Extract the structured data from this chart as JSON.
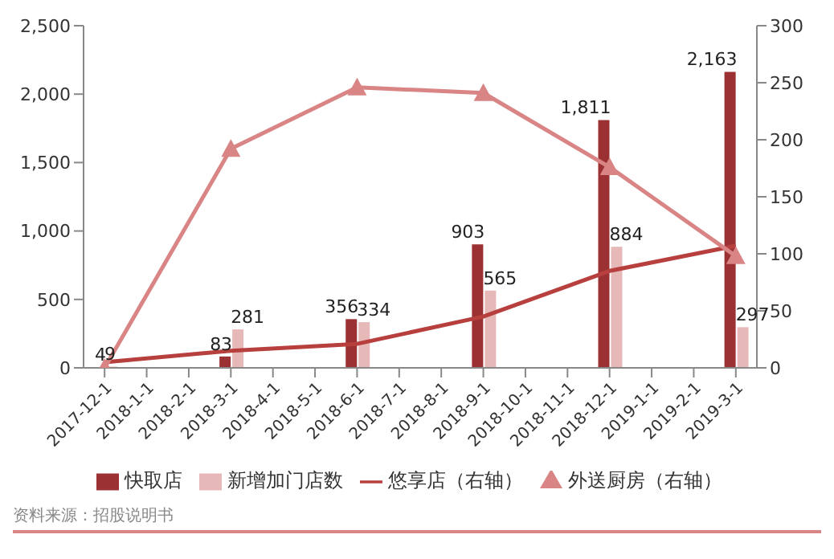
{
  "chart_data": {
    "type": "bar",
    "categories": [
      "2017-12-1",
      "2018-1-1",
      "2018-2-1",
      "2018-3-1",
      "2018-4-1",
      "2018-5-1",
      "2018-6-1",
      "2018-7-1",
      "2018-8-1",
      "2018-9-1",
      "2018-10-1",
      "2018-11-1",
      "2018-12-1",
      "2019-1-1",
      "2019-2-1",
      "2019-3-1"
    ],
    "series": [
      {
        "name": "快取店",
        "color": "#9b3133",
        "values": [
          4,
          null,
          null,
          83,
          null,
          null,
          356,
          null,
          null,
          903,
          null,
          null,
          1811,
          null,
          null,
          2163
        ],
        "value_labels": [
          "4",
          null,
          null,
          "83",
          null,
          null,
          "356",
          null,
          null,
          "903",
          null,
          null,
          "1,811",
          null,
          null,
          "2,163"
        ]
      },
      {
        "name": "新增加门店数",
        "color": "#e6b8b7",
        "values": [
          9,
          null,
          null,
          281,
          null,
          null,
          334,
          null,
          null,
          565,
          null,
          null,
          884,
          null,
          null,
          297
        ],
        "value_labels": [
          "9",
          null,
          null,
          "281",
          null,
          null,
          "334",
          null,
          null,
          "565",
          null,
          null,
          "884",
          null,
          null,
          "297"
        ]
      },
      {
        "name": "悠享店（右轴）",
        "type": "line",
        "axis": "y2",
        "color": "#b7403f",
        "marker": "none",
        "values": [
          5,
          null,
          null,
          15,
          null,
          null,
          21,
          null,
          null,
          45,
          null,
          null,
          85,
          null,
          null,
          107
        ]
      },
      {
        "name": "外送厨房（右轴）",
        "type": "line",
        "axis": "y2",
        "color": "#d98585",
        "marker": "triangle",
        "values": [
          0,
          null,
          null,
          192,
          null,
          null,
          246,
          null,
          null,
          241,
          null,
          null,
          176,
          null,
          null,
          98
        ]
      }
    ],
    "ylim": [
      0,
      2500
    ],
    "yticks": [
      0,
      {
        "value": 500,
        "label": "500"
      },
      {
        "value": 1000,
        "label": "1,000"
      },
      {
        "value": 1500,
        "label": "1,500"
      },
      {
        "value": 2000,
        "label": "2,000"
      },
      {
        "value": 2500,
        "label": "2,500"
      }
    ],
    "y2lim": [
      0,
      300
    ],
    "y2ticks": [
      0,
      50,
      100,
      150,
      200,
      250,
      300
    ],
    "legend": "bottom",
    "grid": false,
    "line_style": "solid",
    "annotations": [
      "资料来源：招股说明书"
    ]
  }
}
